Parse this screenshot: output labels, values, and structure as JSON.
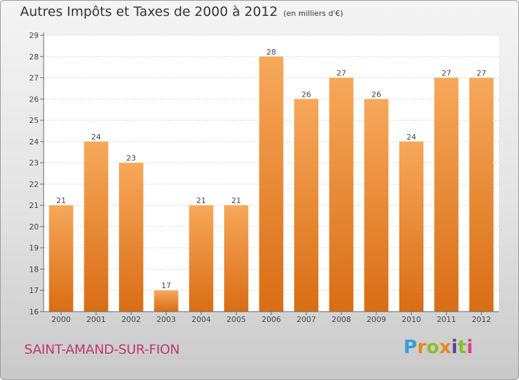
{
  "title": "Autres Impôts et Taxes de 2000 à 2012",
  "unit": "(en milliers d'€)",
  "commune": "SAINT-AMAND-SUR-FION",
  "brand": {
    "text": "Proxiti",
    "letter_colors": [
      "#3d9ad8",
      "#e8881c",
      "#8cbf2b",
      "#e8881c",
      "#5a3fa0",
      "#8cbf2b",
      "#e03c8a"
    ]
  },
  "colors": {
    "bar_light": "#f7a85a",
    "bar_dark": "#d96d14",
    "commune": "#c0396b"
  },
  "chart_data": {
    "type": "bar",
    "title": "Autres Impôts et Taxes de 2000 à 2012",
    "xlabel": "",
    "ylabel": "",
    "categories": [
      "2000",
      "2001",
      "2002",
      "2003",
      "2004",
      "2005",
      "2006",
      "2007",
      "2008",
      "2009",
      "2010",
      "2011",
      "2012"
    ],
    "values": [
      21,
      24,
      23,
      17,
      21,
      21,
      28,
      26,
      27,
      26,
      24,
      27,
      27
    ],
    "ylim": [
      16,
      29
    ],
    "yticks": [
      16,
      17,
      18,
      19,
      20,
      21,
      22,
      23,
      24,
      25,
      26,
      27,
      28,
      29
    ],
    "grid": true
  }
}
